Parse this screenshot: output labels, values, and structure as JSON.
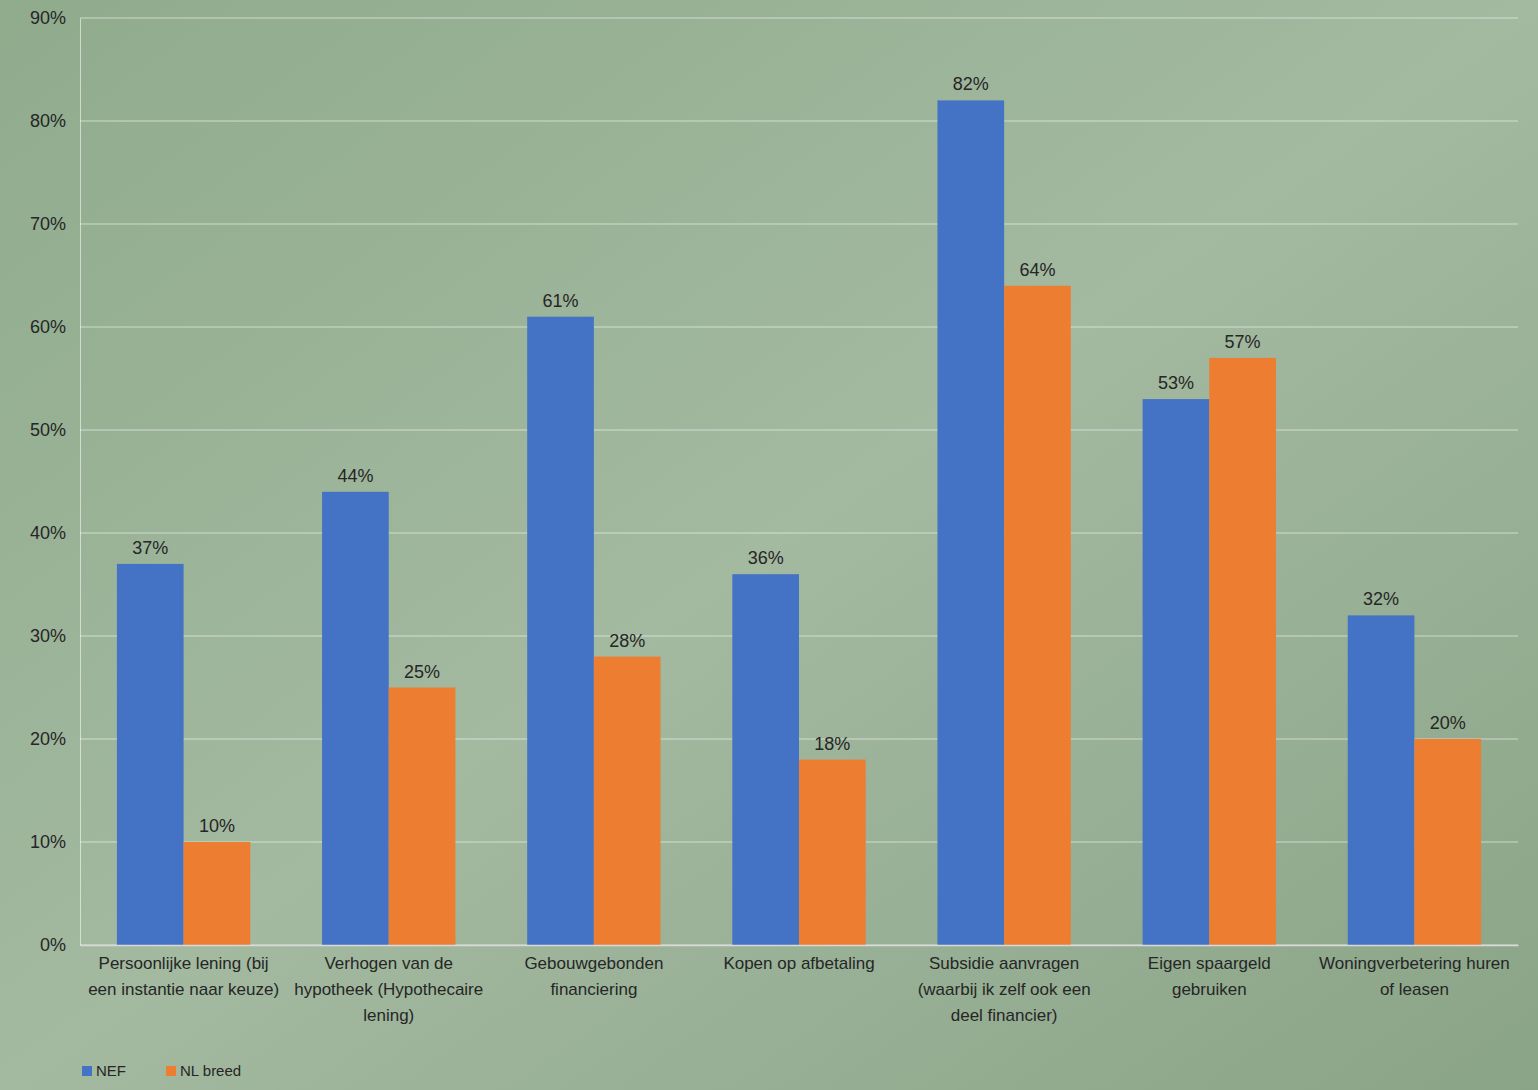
{
  "chart_data": {
    "type": "bar",
    "categories": [
      "Persoonlijke lening (bij een instantie naar keuze)",
      "Verhogen van de hypotheek (Hypothecaire lening)",
      "Gebouwgebonden financiering",
      "Kopen op afbetaling",
      "Subsidie aanvragen (waarbij ik zelf ook een deel financier)",
      "Eigen spaargeld gebruiken",
      "Woningverbetering huren of leasen"
    ],
    "series": [
      {
        "name": "NEF",
        "color": "#4472c4",
        "values": [
          37,
          44,
          61,
          36,
          82,
          53,
          32
        ],
        "value_labels": [
          "37%",
          "44%",
          "61%",
          "36%",
          "82%",
          "53%",
          "32%"
        ]
      },
      {
        "name": "NL breed",
        "color": "#ed7d31",
        "values": [
          10,
          25,
          28,
          18,
          64,
          57,
          20
        ],
        "value_labels": [
          "10%",
          "25%",
          "28%",
          "18%",
          "64%",
          "57%",
          "20%"
        ]
      }
    ],
    "ylim": [
      0,
      90
    ],
    "yticks": [
      {
        "value": 0,
        "label": "0%"
      },
      {
        "value": 10,
        "label": "10%"
      },
      {
        "value": 20,
        "label": "20%"
      },
      {
        "value": 30,
        "label": "30%"
      },
      {
        "value": 40,
        "label": "40%"
      },
      {
        "value": 50,
        "label": "50%"
      },
      {
        "value": 60,
        "label": "60%"
      },
      {
        "value": 70,
        "label": "70%"
      },
      {
        "value": 80,
        "label": "80%"
      },
      {
        "value": 90,
        "label": "90%"
      }
    ],
    "grid": true,
    "data_labels": true,
    "legend": "bottom-left"
  }
}
